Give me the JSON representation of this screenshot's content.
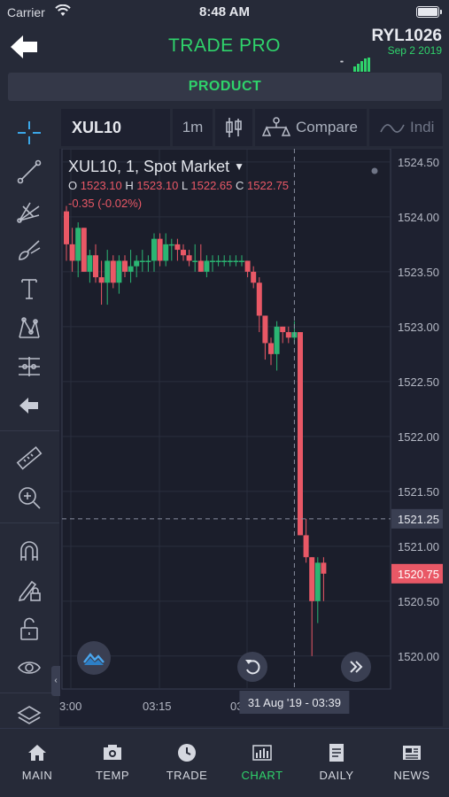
{
  "status_bar": {
    "carrier": "Carrier",
    "time": "8:48 AM"
  },
  "header": {
    "title": "TRADE PRO",
    "account": "RYL1026",
    "date": "Sep 2 2019",
    "signal_label": "••"
  },
  "product_label": "PRODUCT",
  "toolbar": {
    "tools": [
      "crosshair",
      "trend-line",
      "fib-tool",
      "brush",
      "text",
      "pattern",
      "measure-lines",
      "back",
      "ruler",
      "zoom-in",
      "magnet",
      "lock-draw",
      "unlock",
      "eye",
      "layers"
    ]
  },
  "chart_toolbar": {
    "symbol": "XUL10",
    "interval": "1m",
    "compare_label": "Compare",
    "indicators_label": "Indi"
  },
  "legend": {
    "title": "XUL10, 1, Spot Market",
    "o_label": "O",
    "o": "1523.10",
    "h_label": "H",
    "h": "1523.10",
    "l_label": "L",
    "l": "1522.65",
    "c_label": "C",
    "c": "1522.75",
    "change": "-0.35 (-0.02%)"
  },
  "colors": {
    "up": "#2bb573",
    "down": "#e95866",
    "accent": "#2fd36b",
    "crosshair": "#8a8fa0"
  },
  "chart_data": {
    "type": "candlestick",
    "y_ticks": [
      "1524.50",
      "1524.00",
      "1523.50",
      "1523.00",
      "1522.50",
      "1522.00",
      "1521.50",
      "1521.00",
      "1520.50",
      "1520.00"
    ],
    "ylim": [
      1519.7,
      1524.62
    ],
    "x_ticks": [
      {
        "label": "3:00",
        "index": 0
      },
      {
        "label": "03:15",
        "index": 15
      },
      {
        "label": "03:3",
        "index": 30
      }
    ],
    "crosshair_price": "1521.25",
    "crosshair_price_value": 1521.25,
    "crosshair_time": "31 Aug '19 - 03:39",
    "crosshair_index": 39,
    "last_price": "1520.75",
    "last_price_value": 1520.75,
    "candles": [
      {
        "o": 1524.05,
        "h": 1524.1,
        "l": 1523.6,
        "c": 1523.75
      },
      {
        "o": 1523.75,
        "h": 1523.9,
        "l": 1523.5,
        "c": 1523.6
      },
      {
        "o": 1523.6,
        "h": 1523.95,
        "l": 1523.45,
        "c": 1523.9
      },
      {
        "o": 1523.9,
        "h": 1523.9,
        "l": 1523.5,
        "c": 1523.5
      },
      {
        "o": 1523.5,
        "h": 1523.7,
        "l": 1523.4,
        "c": 1523.65
      },
      {
        "o": 1523.65,
        "h": 1523.75,
        "l": 1523.4,
        "c": 1523.45
      },
      {
        "o": 1523.45,
        "h": 1523.6,
        "l": 1523.2,
        "c": 1523.4
      },
      {
        "o": 1523.4,
        "h": 1523.7,
        "l": 1523.2,
        "c": 1523.6
      },
      {
        "o": 1523.6,
        "h": 1523.65,
        "l": 1523.35,
        "c": 1523.4
      },
      {
        "o": 1523.4,
        "h": 1523.65,
        "l": 1523.3,
        "c": 1523.6
      },
      {
        "o": 1523.6,
        "h": 1523.65,
        "l": 1523.45,
        "c": 1523.5
      },
      {
        "o": 1523.5,
        "h": 1523.7,
        "l": 1523.4,
        "c": 1523.55
      },
      {
        "o": 1523.55,
        "h": 1523.65,
        "l": 1523.45,
        "c": 1523.6
      },
      {
        "o": 1523.6,
        "h": 1523.7,
        "l": 1523.5,
        "c": 1523.6
      },
      {
        "o": 1523.6,
        "h": 1523.65,
        "l": 1523.5,
        "c": 1523.6
      },
      {
        "o": 1523.6,
        "h": 1523.85,
        "l": 1523.5,
        "c": 1523.8
      },
      {
        "o": 1523.8,
        "h": 1523.85,
        "l": 1523.55,
        "c": 1523.6
      },
      {
        "o": 1523.6,
        "h": 1523.85,
        "l": 1523.55,
        "c": 1523.75
      },
      {
        "o": 1523.75,
        "h": 1523.8,
        "l": 1523.6,
        "c": 1523.75
      },
      {
        "o": 1523.75,
        "h": 1523.8,
        "l": 1523.6,
        "c": 1523.7
      },
      {
        "o": 1523.7,
        "h": 1523.75,
        "l": 1523.6,
        "c": 1523.65
      },
      {
        "o": 1523.65,
        "h": 1523.7,
        "l": 1523.55,
        "c": 1523.6
      },
      {
        "o": 1523.6,
        "h": 1523.75,
        "l": 1523.5,
        "c": 1523.6
      },
      {
        "o": 1523.6,
        "h": 1523.75,
        "l": 1523.5,
        "c": 1523.5
      },
      {
        "o": 1523.5,
        "h": 1523.65,
        "l": 1523.45,
        "c": 1523.6
      },
      {
        "o": 1523.6,
        "h": 1523.65,
        "l": 1523.5,
        "c": 1523.6
      },
      {
        "o": 1523.6,
        "h": 1523.65,
        "l": 1523.55,
        "c": 1523.6
      },
      {
        "o": 1523.6,
        "h": 1523.65,
        "l": 1523.55,
        "c": 1523.6
      },
      {
        "o": 1523.6,
        "h": 1523.65,
        "l": 1523.55,
        "c": 1523.6
      },
      {
        "o": 1523.6,
        "h": 1523.65,
        "l": 1523.55,
        "c": 1523.6
      },
      {
        "o": 1523.6,
        "h": 1523.65,
        "l": 1523.55,
        "c": 1523.6
      },
      {
        "o": 1523.6,
        "h": 1523.6,
        "l": 1523.45,
        "c": 1523.5
      },
      {
        "o": 1523.5,
        "h": 1523.55,
        "l": 1523.35,
        "c": 1523.4
      },
      {
        "o": 1523.4,
        "h": 1523.45,
        "l": 1522.95,
        "c": 1523.1
      },
      {
        "o": 1523.1,
        "h": 1523.1,
        "l": 1522.7,
        "c": 1522.85
      },
      {
        "o": 1522.85,
        "h": 1522.9,
        "l": 1522.65,
        "c": 1522.75
      },
      {
        "o": 1522.75,
        "h": 1523.05,
        "l": 1522.6,
        "c": 1523.0
      },
      {
        "o": 1523.0,
        "h": 1523.0,
        "l": 1522.85,
        "c": 1522.95
      },
      {
        "o": 1522.95,
        "h": 1523.0,
        "l": 1522.85,
        "c": 1522.9
      },
      {
        "o": 1522.9,
        "h": 1523.05,
        "l": 1522.85,
        "c": 1522.95
      },
      {
        "o": 1522.95,
        "h": 1522.95,
        "l": 1521.1,
        "c": 1521.1
      },
      {
        "o": 1521.1,
        "h": 1521.25,
        "l": 1520.85,
        "c": 1520.9
      },
      {
        "o": 1520.9,
        "h": 1520.9,
        "l": 1520.0,
        "c": 1520.5
      },
      {
        "o": 1520.5,
        "h": 1520.9,
        "l": 1520.3,
        "c": 1520.85
      },
      {
        "o": 1520.85,
        "h": 1520.9,
        "l": 1520.5,
        "c": 1520.75
      }
    ]
  },
  "nav": [
    {
      "label": "MAIN",
      "icon": "home-icon"
    },
    {
      "label": "TEMP",
      "icon": "temp-icon"
    },
    {
      "label": "TRADE",
      "icon": "clock-icon"
    },
    {
      "label": "CHART",
      "icon": "chart-icon",
      "active": true
    },
    {
      "label": "DAILY",
      "icon": "document-icon"
    },
    {
      "label": "NEWS",
      "icon": "news-icon"
    }
  ]
}
